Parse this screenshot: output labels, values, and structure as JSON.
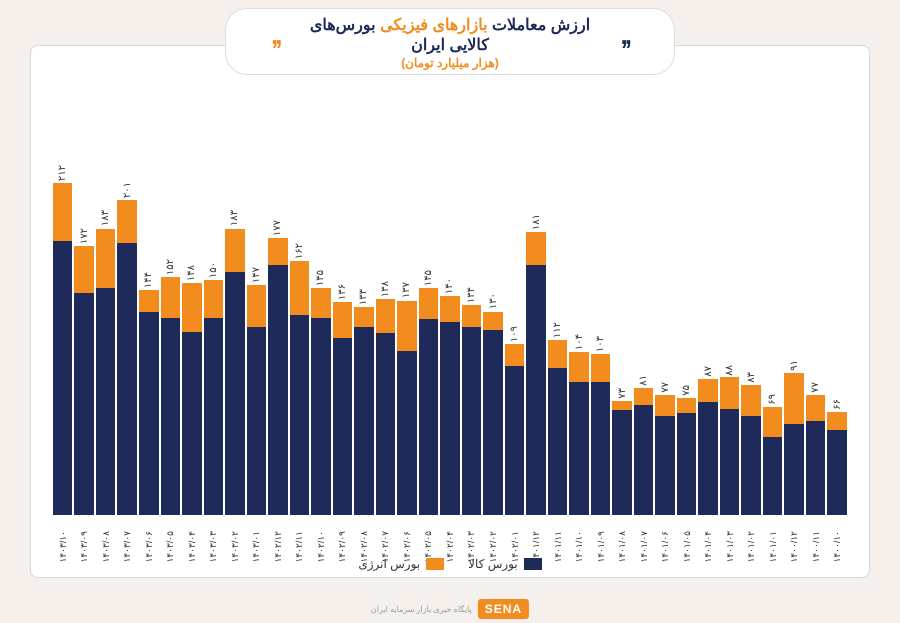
{
  "title": {
    "pre": "ارزش معاملات",
    "accent": "بازارهای فیزیکی",
    "post": "بورس‌های کالایی ایران",
    "sub": "(هزار میلیارد تومان)"
  },
  "chart": {
    "type": "stacked-bar",
    "y_max": 230,
    "colors": {
      "series1": "#1e2a5a",
      "series2": "#f28c1f"
    },
    "series_names": {
      "s1": "بورس کالا",
      "s2": "بورس انرژی"
    },
    "points": [
      {
        "x": "۱۴۰۰/۱۰",
        "s1": 54,
        "s2": 12,
        "total": "۶۶"
      },
      {
        "x": "۱۴۰۰/۱۱",
        "s1": 60,
        "s2": 17,
        "total": "۷۷"
      },
      {
        "x": "۱۴۰۰/۱۲",
        "s1": 58,
        "s2": 33,
        "total": "۹۱"
      },
      {
        "x": "۱۴۰۱/۰۱",
        "s1": 50,
        "s2": 19,
        "total": "۶۹"
      },
      {
        "x": "۱۴۰۱/۰۲",
        "s1": 63,
        "s2": 20,
        "total": "۸۳"
      },
      {
        "x": "۱۴۰۱/۰۳",
        "s1": 68,
        "s2": 20,
        "total": "۸۸"
      },
      {
        "x": "۱۴۰۱/۰۴",
        "s1": 72,
        "s2": 15,
        "total": "۸۷"
      },
      {
        "x": "۱۴۰۱/۰۵",
        "s1": 65,
        "s2": 10,
        "total": "۷۵"
      },
      {
        "x": "۱۴۰۱/۰۶",
        "s1": 63,
        "s2": 14,
        "total": "۷۷"
      },
      {
        "x": "۱۴۰۱/۰۷",
        "s1": 70,
        "s2": 11,
        "total": "۸۱"
      },
      {
        "x": "۱۴۰۱/۰۸",
        "s1": 67,
        "s2": 6,
        "total": "۷۳"
      },
      {
        "x": "۱۴۰۱/۰۹",
        "s1": 85,
        "s2": 18,
        "total": "۱۰۳"
      },
      {
        "x": "۱۴۰۱/۱۰",
        "s1": 85,
        "s2": 19,
        "total": "۱۰۴"
      },
      {
        "x": "۱۴۰۱/۱۱",
        "s1": 94,
        "s2": 18,
        "total": "۱۱۲"
      },
      {
        "x": "۱۴۰۱/۱۲",
        "s1": 160,
        "s2": 21,
        "total": "۱۸۱"
      },
      {
        "x": "۱۴۰۲/۰۱",
        "s1": 95,
        "s2": 14,
        "total": "۱۰۹"
      },
      {
        "x": "۱۴۰۲/۰۲",
        "s1": 118,
        "s2": 12,
        "total": "۱۳۰"
      },
      {
        "x": "۱۴۰۲/۰۳",
        "s1": 120,
        "s2": 14,
        "total": "۱۳۴"
      },
      {
        "x": "۱۴۰۲/۰۴",
        "s1": 123,
        "s2": 17,
        "total": "۱۴۰"
      },
      {
        "x": "۱۴۰۲/۰۵",
        "s1": 125,
        "s2": 20,
        "total": "۱۴۵"
      },
      {
        "x": "۱۴۰۲/۰۶",
        "s1": 105,
        "s2": 32,
        "total": "۱۳۷"
      },
      {
        "x": "۱۴۰۲/۰۷",
        "s1": 116,
        "s2": 22,
        "total": "۱۳۸"
      },
      {
        "x": "۱۴۰۲/۰۸",
        "s1": 120,
        "s2": 13,
        "total": "۱۳۳"
      },
      {
        "x": "۱۴۰۲/۰۹",
        "s1": 113,
        "s2": 23,
        "total": "۱۳۶"
      },
      {
        "x": "۱۴۰۲/۱۰",
        "s1": 126,
        "s2": 19,
        "total": "۱۴۵"
      },
      {
        "x": "۱۴۰۲/۱۱",
        "s1": 128,
        "s2": 34,
        "total": "۱۶۲"
      },
      {
        "x": "۱۴۰۲/۱۲",
        "s1": 160,
        "s2": 17,
        "total": "۱۷۷"
      },
      {
        "x": "۱۴۰۳/۰۱",
        "s1": 120,
        "s2": 27,
        "total": "۱۴۷"
      },
      {
        "x": "۱۴۰۳/۰۲",
        "s1": 155,
        "s2": 28,
        "total": "۱۸۳"
      },
      {
        "x": "۱۴۰۳/۰۳",
        "s1": 126,
        "s2": 24,
        "total": "۱۵۰"
      },
      {
        "x": "۱۴۰۳/۰۴",
        "s1": 117,
        "s2": 31,
        "total": "۱۴۸"
      },
      {
        "x": "۱۴۰۳/۰۵",
        "s1": 126,
        "s2": 26,
        "total": "۱۵۲"
      },
      {
        "x": "۱۴۰۳/۰۶",
        "s1": 130,
        "s2": 14,
        "total": "۱۴۴"
      },
      {
        "x": "۱۴۰۳/۰۷",
        "s1": 174,
        "s2": 27,
        "total": "۲۰۱"
      },
      {
        "x": "۱۴۰۳/۰۸",
        "s1": 145,
        "s2": 38,
        "total": "۱۸۳"
      },
      {
        "x": "۱۴۰۳/۰۹",
        "s1": 142,
        "s2": 30,
        "total": "۱۷۲"
      },
      {
        "x": "۱۴۰۳/۱۰",
        "s1": 175,
        "s2": 37,
        "total": "۲۱۲"
      }
    ]
  },
  "footer": {
    "logo_text": "SENA",
    "tagline": "پایگاه خبری بازار سرمایه ایران"
  }
}
